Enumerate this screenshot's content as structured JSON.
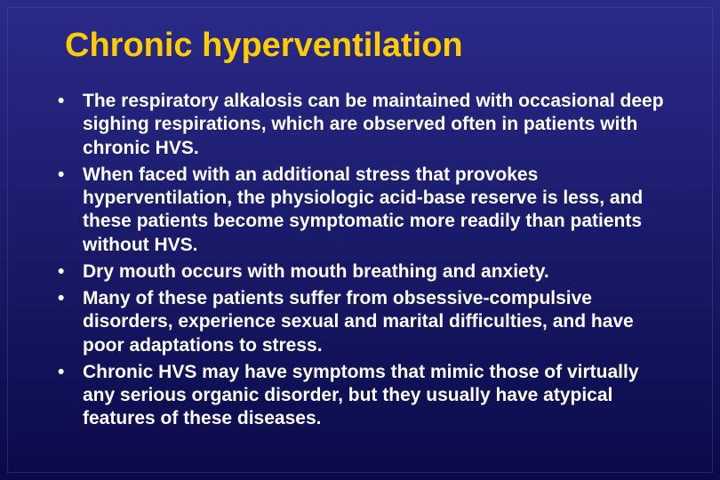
{
  "slide": {
    "title": "Chronic hyperventilation",
    "background_gradient_top": "#2a2a8a",
    "background_gradient_mid": "#1a1a6a",
    "background_gradient_bottom": "#0a0a4a",
    "title_color": "#ffcc00",
    "title_fontsize": 38,
    "text_color": "#ffffff",
    "bullet_fontsize": 21,
    "bullets": [
      "The respiratory alkalosis can be maintained with occasional deep sighing respirations, which are observed often in patients with chronic HVS.",
      "When faced with an additional stress that provokes hyperventilation, the physiologic acid-base reserve is less, and these patients become symptomatic more readily than patients without HVS.",
      "Dry mouth occurs with mouth breathing and anxiety.",
      "Many of these patients suffer from obsessive-compulsive disorders, experience sexual and marital difficulties, and have poor adaptations to stress.",
      "Chronic HVS may have symptoms that mimic those of virtually any serious organic disorder, but they usually have atypical features of these diseases."
    ]
  }
}
